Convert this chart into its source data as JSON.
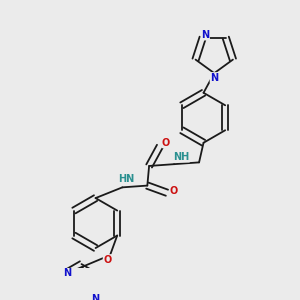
{
  "bg_color": "#ebebeb",
  "bond_color": "#1a1a1a",
  "bond_lw": 1.3,
  "dbo": 0.012,
  "atom_colors": {
    "N": "#1111cc",
    "O": "#cc1111",
    "H": "#2a9090"
  },
  "fs": 6.5,
  "figsize": [
    3.0,
    3.0
  ],
  "dpi": 100
}
